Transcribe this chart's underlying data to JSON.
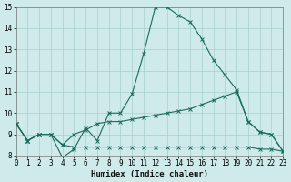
{
  "xlabel": "Humidex (Indice chaleur)",
  "xlim": [
    0,
    23
  ],
  "ylim": [
    8,
    15
  ],
  "yticks": [
    8,
    9,
    10,
    11,
    12,
    13,
    14,
    15
  ],
  "xticks": [
    0,
    1,
    2,
    3,
    4,
    5,
    6,
    7,
    8,
    9,
    10,
    11,
    12,
    13,
    14,
    15,
    16,
    17,
    18,
    19,
    20,
    21,
    22,
    23
  ],
  "background_color": "#ceeaea",
  "line_color": "#1a6b5a",
  "grid_color": "#a8d0d0",
  "lines": [
    {
      "x": [
        0,
        1,
        2,
        3,
        4,
        5,
        6,
        7,
        8,
        9,
        10,
        11,
        12,
        13,
        14,
        15,
        16,
        17,
        18,
        19,
        20,
        21,
        22,
        23
      ],
      "y": [
        9.5,
        8.7,
        9.0,
        9.0,
        7.9,
        8.3,
        9.3,
        8.7,
        10.0,
        10.0,
        10.9,
        12.8,
        15.0,
        15.0,
        14.6,
        14.3,
        13.5,
        12.5,
        11.8,
        11.1,
        9.6,
        9.1,
        9.0,
        8.2
      ]
    },
    {
      "x": [
        0,
        1,
        2,
        3,
        4,
        5,
        6,
        7,
        8,
        9,
        10,
        11,
        12,
        13,
        14,
        15,
        16,
        17,
        18,
        19,
        20,
        21,
        22,
        23
      ],
      "y": [
        9.5,
        8.7,
        9.0,
        9.0,
        8.5,
        9.0,
        9.2,
        9.5,
        9.6,
        9.6,
        9.7,
        9.8,
        9.9,
        10.0,
        10.1,
        10.2,
        10.4,
        10.6,
        10.8,
        11.0,
        9.6,
        9.1,
        9.0,
        8.2
      ]
    },
    {
      "x": [
        0,
        1,
        2,
        3,
        4,
        5,
        6,
        7,
        8,
        9,
        10,
        11,
        12,
        13,
        14,
        15,
        16,
        17,
        18,
        19,
        20,
        21,
        22,
        23
      ],
      "y": [
        9.5,
        8.7,
        9.0,
        9.0,
        8.5,
        8.4,
        8.4,
        8.4,
        8.4,
        8.4,
        8.4,
        8.4,
        8.4,
        8.4,
        8.4,
        8.4,
        8.4,
        8.4,
        8.4,
        8.4,
        8.4,
        8.3,
        8.3,
        8.2
      ]
    }
  ]
}
